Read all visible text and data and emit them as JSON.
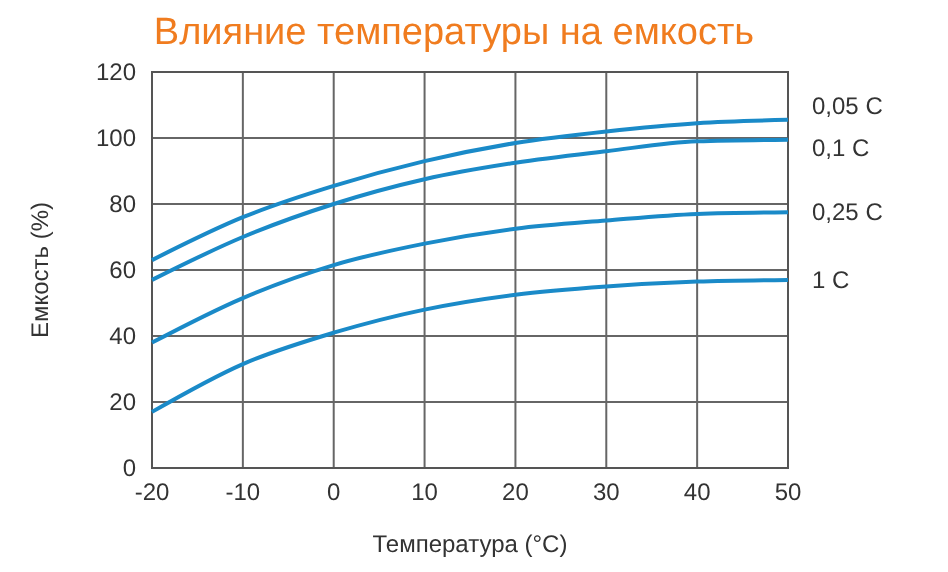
{
  "chart_data": {
    "type": "line",
    "title": "Влияние температуры на емкость",
    "xlabel": "Температура (°C)",
    "ylabel": "Емкость (%)",
    "x": [
      -20,
      -10,
      0,
      10,
      20,
      30,
      40,
      50
    ],
    "series": [
      {
        "name": "0,05 C",
        "color": "#1a8ac8",
        "values": [
          63,
          76,
          85.5,
          93,
          98.5,
          102,
          104.5,
          105.5
        ]
      },
      {
        "name": "0,1 C",
        "color": "#1a8ac8",
        "values": [
          57,
          70,
          80,
          87.5,
          92.5,
          96,
          99,
          99.5
        ]
      },
      {
        "name": "0,25 C",
        "color": "#1a8ac8",
        "values": [
          38,
          51.5,
          61.5,
          68,
          72.5,
          75,
          77,
          77.5
        ]
      },
      {
        "name": "1 C",
        "color": "#1a8ac8",
        "values": [
          17,
          31.5,
          41,
          48,
          52.5,
          55,
          56.5,
          57
        ]
      }
    ],
    "xlim": [
      -20,
      50
    ],
    "xticks": [
      -20,
      -10,
      0,
      10,
      20,
      30,
      40,
      50
    ],
    "ylim": [
      0,
      120
    ],
    "yticks": [
      0,
      20,
      40,
      60,
      80,
      100,
      120
    ],
    "grid": true,
    "marker": "none",
    "line_style": "solid",
    "legend": false
  }
}
